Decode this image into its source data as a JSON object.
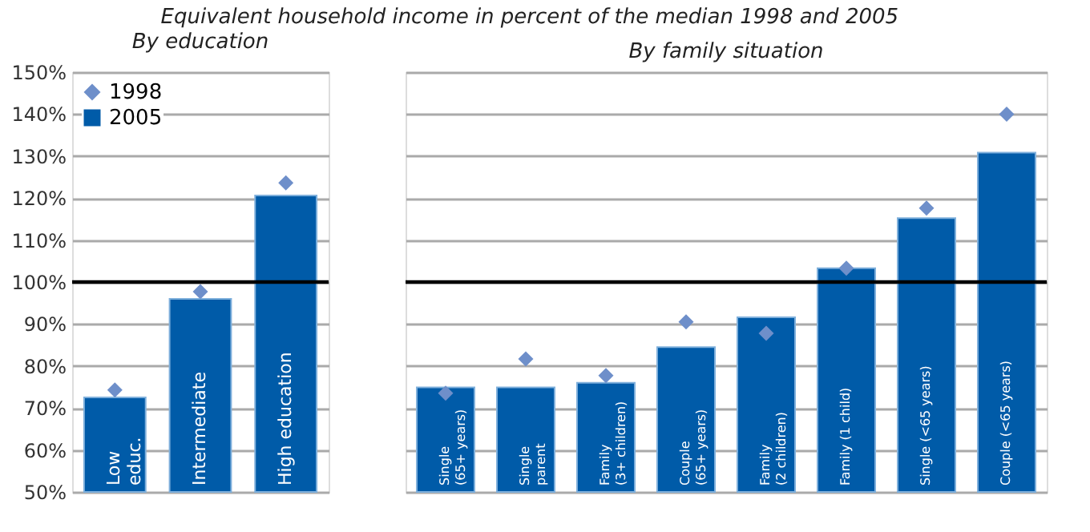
{
  "chart_data": [
    {
      "type": "bar",
      "title": "Equivalent household income in percent of the median 1998 and 2005",
      "subtitle": "By education",
      "categories": [
        "Low\neduc.",
        "Intermediate",
        "High education"
      ],
      "series": [
        {
          "name": "1998",
          "type": "scatter",
          "color": "#6e8fca",
          "values": [
            74.3,
            97.7,
            123.6
          ]
        },
        {
          "name": "2005",
          "color": "#005ba8",
          "values": [
            72.5,
            96,
            120.6
          ]
        }
      ],
      "ylim": [
        50,
        150
      ],
      "yticks": [
        {
          "value": 50,
          "label": "50%"
        },
        {
          "value": 60,
          "label": "60%"
        },
        {
          "value": 70,
          "label": "70%"
        },
        {
          "value": 80,
          "label": "80%"
        },
        {
          "value": 90,
          "label": "90%"
        },
        {
          "value": 100,
          "label": "100%"
        },
        {
          "value": 110,
          "label": "110%"
        },
        {
          "value": 120,
          "label": "120%"
        },
        {
          "value": 130,
          "label": "130%"
        },
        {
          "value": 140,
          "label": "140%"
        },
        {
          "value": 150,
          "label": "150%"
        }
      ],
      "ref_lines": [
        {
          "axis": "y",
          "value": 100,
          "color": "#000000"
        }
      ],
      "grid": "y",
      "legend": "top left",
      "marker": "diamond"
    },
    {
      "type": "bar",
      "subtitle": "By family situation",
      "categories": [
        "Single\n(65+ years)",
        "Single\nparent",
        "Family\n(3+ children)",
        "Couple\n(65+ years)",
        "Family\n(2 children)",
        "Family (1 child)",
        "Single (<65 years)",
        "Couple (<65 years)"
      ],
      "series": [
        {
          "type": "scatter",
          "color": "#6e8fca",
          "values": [
            73.5,
            81.7,
            77.7,
            90.5,
            87.8,
            103.3,
            117.6,
            140
          ]
        },
        {
          "color": "#005ba8",
          "values": [
            74.9,
            74.9,
            76,
            84.5,
            91.6,
            103.3,
            115.2,
            130.8
          ]
        }
      ],
      "ylim": [
        50,
        150
      ],
      "yticks": [
        {
          "value": 50,
          "label": null
        },
        {
          "value": 60,
          "label": null
        },
        {
          "value": 70,
          "label": null
        },
        {
          "value": 80,
          "label": null
        },
        {
          "value": 90,
          "label": null
        },
        {
          "value": 100,
          "label": null
        },
        {
          "value": 110,
          "label": null
        },
        {
          "value": 120,
          "label": null
        },
        {
          "value": 130,
          "label": null
        },
        {
          "value": 140,
          "label": null
        },
        {
          "value": 150,
          "label": null
        }
      ],
      "ref_lines": [
        {
          "axis": "y",
          "value": 100,
          "color": "#000000"
        }
      ],
      "grid": "y",
      "tick_labels": false,
      "marker": "diamond"
    }
  ]
}
